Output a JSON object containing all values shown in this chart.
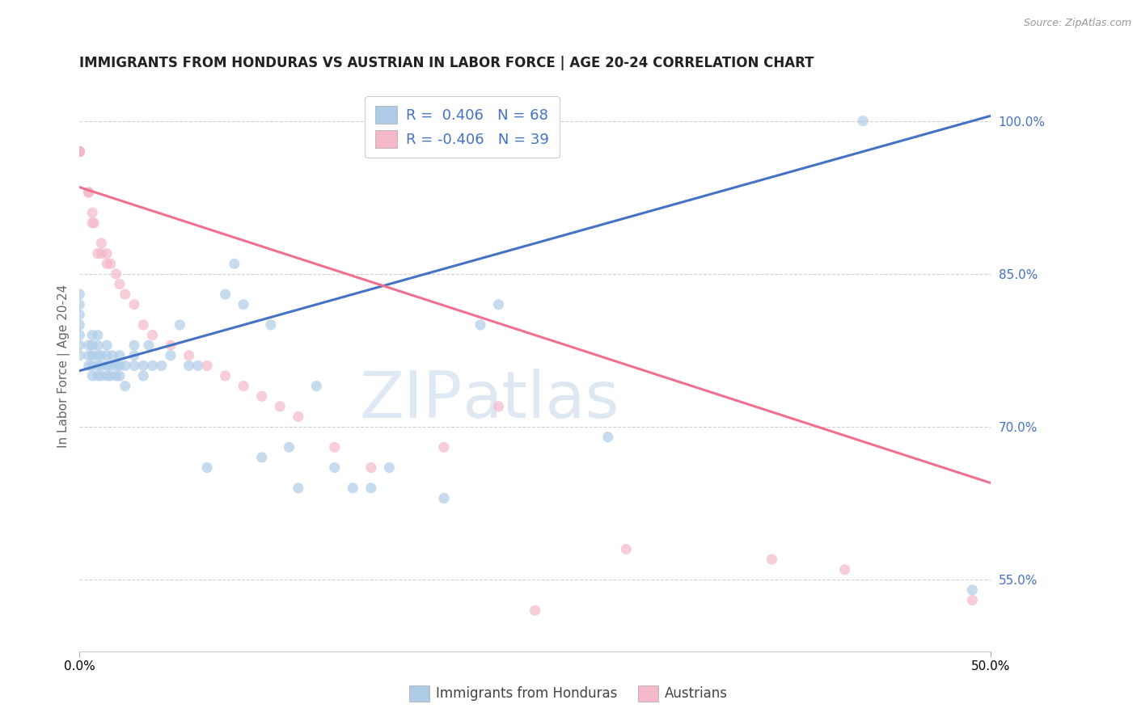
{
  "title": "IMMIGRANTS FROM HONDURAS VS AUSTRIAN IN LABOR FORCE | AGE 20-24 CORRELATION CHART",
  "source": "Source: ZipAtlas.com",
  "ylabel": "In Labor Force | Age 20-24",
  "xlim": [
    0.0,
    0.5
  ],
  "ylim": [
    0.48,
    1.04
  ],
  "ytick_vals": [
    0.55,
    0.7,
    0.85,
    1.0
  ],
  "xtick_vals": [
    0.0,
    0.5
  ],
  "blue_R": 0.406,
  "blue_N": 68,
  "pink_R": -0.406,
  "pink_N": 39,
  "blue_color": "#aecce8",
  "pink_color": "#f4b8c8",
  "blue_line_color": "#4472c4",
  "pink_line_color": "#f07090",
  "watermark_zip": "ZIP",
  "watermark_atlas": "atlas",
  "legend_blue_label": "Immigrants from Honduras",
  "legend_pink_label": "Austrians",
  "blue_scatter_x": [
    0.0,
    0.0,
    0.0,
    0.0,
    0.0,
    0.0,
    0.0,
    0.005,
    0.005,
    0.005,
    0.007,
    0.007,
    0.007,
    0.007,
    0.007,
    0.01,
    0.01,
    0.01,
    0.01,
    0.01,
    0.012,
    0.012,
    0.012,
    0.015,
    0.015,
    0.015,
    0.015,
    0.017,
    0.017,
    0.018,
    0.02,
    0.02,
    0.022,
    0.022,
    0.022,
    0.025,
    0.025,
    0.03,
    0.03,
    0.03,
    0.035,
    0.035,
    0.038,
    0.04,
    0.045,
    0.05,
    0.055,
    0.06,
    0.065,
    0.07,
    0.08,
    0.085,
    0.09,
    0.1,
    0.105,
    0.115,
    0.12,
    0.13,
    0.14,
    0.15,
    0.16,
    0.17,
    0.2,
    0.22,
    0.23,
    0.29,
    0.43,
    0.49
  ],
  "blue_scatter_y": [
    0.77,
    0.78,
    0.79,
    0.8,
    0.81,
    0.82,
    0.83,
    0.76,
    0.77,
    0.78,
    0.75,
    0.76,
    0.77,
    0.78,
    0.79,
    0.75,
    0.76,
    0.77,
    0.78,
    0.79,
    0.75,
    0.76,
    0.77,
    0.75,
    0.76,
    0.77,
    0.78,
    0.75,
    0.76,
    0.77,
    0.75,
    0.76,
    0.75,
    0.76,
    0.77,
    0.74,
    0.76,
    0.76,
    0.77,
    0.78,
    0.75,
    0.76,
    0.78,
    0.76,
    0.76,
    0.77,
    0.8,
    0.76,
    0.76,
    0.66,
    0.83,
    0.86,
    0.82,
    0.67,
    0.8,
    0.68,
    0.64,
    0.74,
    0.66,
    0.64,
    0.64,
    0.66,
    0.63,
    0.8,
    0.82,
    0.69,
    1.0,
    0.54
  ],
  "pink_scatter_x": [
    0.0,
    0.0,
    0.0,
    0.0,
    0.0,
    0.005,
    0.005,
    0.007,
    0.007,
    0.008,
    0.01,
    0.012,
    0.012,
    0.015,
    0.015,
    0.017,
    0.02,
    0.022,
    0.025,
    0.03,
    0.035,
    0.04,
    0.05,
    0.06,
    0.07,
    0.08,
    0.09,
    0.1,
    0.11,
    0.12,
    0.14,
    0.16,
    0.2,
    0.23,
    0.25,
    0.3,
    0.38,
    0.42,
    0.49
  ],
  "pink_scatter_y": [
    0.97,
    0.97,
    0.97,
    0.97,
    0.97,
    0.93,
    0.93,
    0.9,
    0.91,
    0.9,
    0.87,
    0.87,
    0.88,
    0.86,
    0.87,
    0.86,
    0.85,
    0.84,
    0.83,
    0.82,
    0.8,
    0.79,
    0.78,
    0.77,
    0.76,
    0.75,
    0.74,
    0.73,
    0.72,
    0.71,
    0.68,
    0.66,
    0.68,
    0.72,
    0.52,
    0.58,
    0.57,
    0.56,
    0.53
  ],
  "blue_trend_x": [
    0.0,
    0.5
  ],
  "blue_trend_y": [
    0.755,
    1.005
  ],
  "pink_trend_x": [
    0.0,
    0.5
  ],
  "pink_trend_y": [
    0.935,
    0.645
  ],
  "grid_color": "#cccccc",
  "background_color": "#ffffff",
  "title_fontsize": 12,
  "axis_label_fontsize": 11,
  "tick_fontsize": 11,
  "marker_size": 90
}
